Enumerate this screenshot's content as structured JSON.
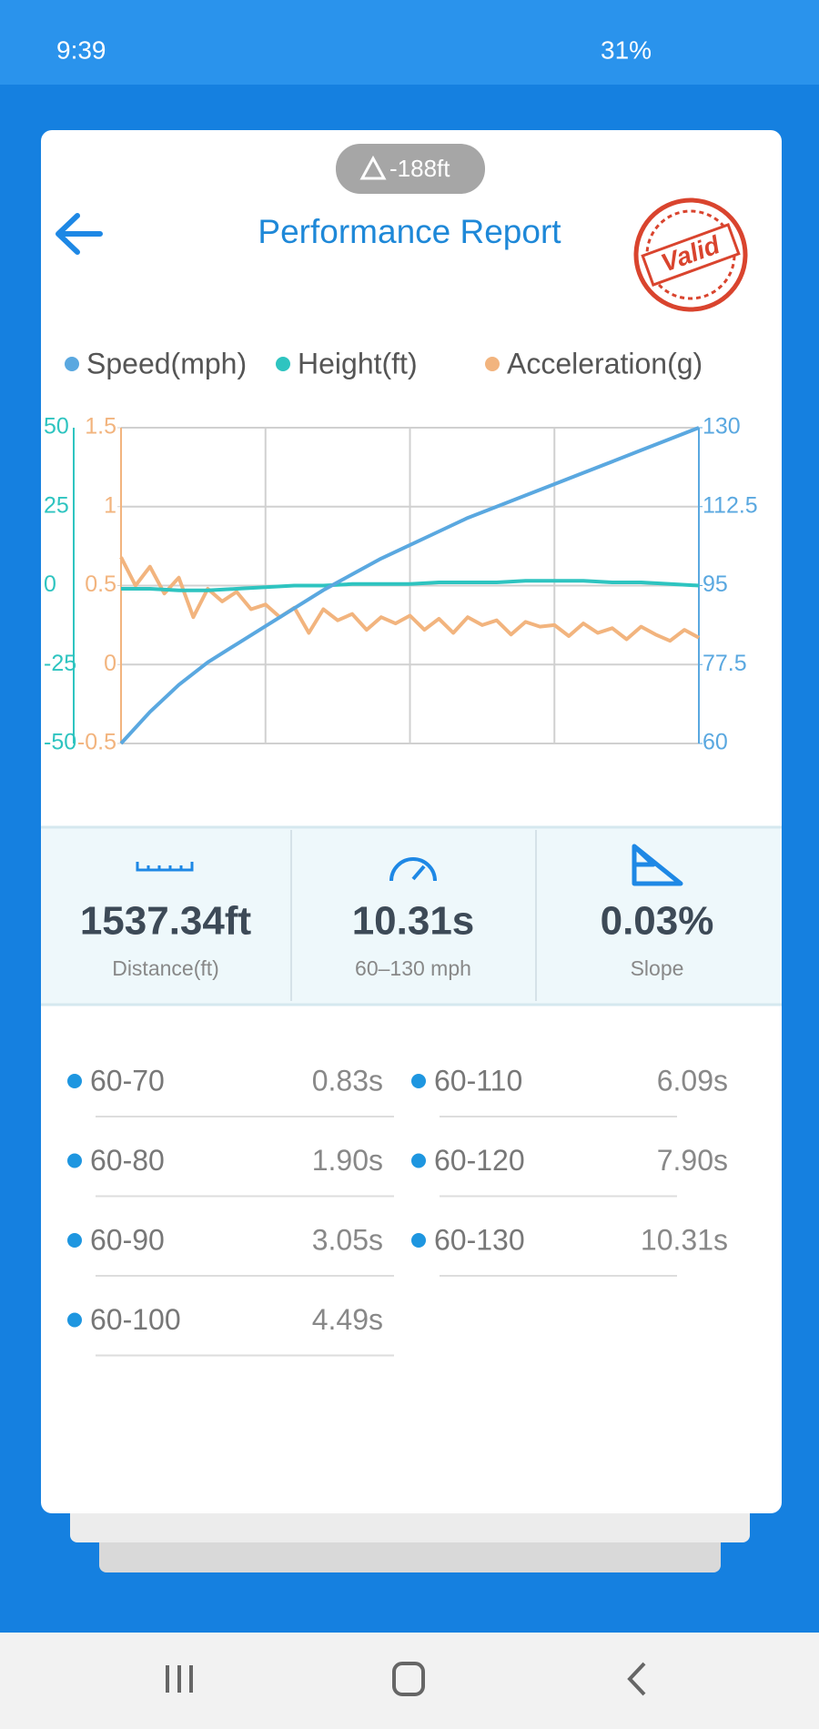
{
  "status_bar": {
    "time": "9:39",
    "battery": "31%"
  },
  "header": {
    "altitude": "-188ft",
    "title": "Performance Report",
    "stamp": "Valid"
  },
  "chart_data": {
    "type": "line",
    "grid": true,
    "ylim": [
      -50,
      50
    ],
    "yticks": [
      -50,
      -25,
      0,
      25,
      50
    ],
    "y2lim": [
      60,
      130
    ],
    "y2ticks": [
      60,
      77.5,
      95,
      112.5,
      130
    ],
    "y3lim": [
      -0.5,
      1.5
    ],
    "y3ticks": [
      -0.5,
      0,
      0.5,
      1,
      1.5
    ],
    "series": [
      {
        "name": "Speed(mph)",
        "color": "#5aa8e0",
        "axis": "y2",
        "values": [
          60,
          67,
          73,
          78,
          82,
          86,
          90,
          94,
          97.5,
          101,
          104,
          107,
          110,
          112.5,
          115,
          117.5,
          120,
          122.5,
          125,
          127.5,
          130
        ]
      },
      {
        "name": "Height(ft)",
        "color": "#2ec4c0",
        "axis": "y",
        "values": [
          -1,
          -1,
          -1.5,
          -1.5,
          -1,
          -0.5,
          0,
          0,
          0.5,
          0.5,
          0.5,
          1,
          1,
          1,
          1.5,
          1.5,
          1.5,
          1,
          1,
          0.5,
          0
        ]
      },
      {
        "name": "Acceleration(g)",
        "color": "#f2b47e",
        "axis": "y3",
        "values": [
          0.68,
          0.5,
          0.62,
          0.45,
          0.55,
          0.3,
          0.48,
          0.4,
          0.46,
          0.35,
          0.38,
          0.3,
          0.36,
          0.2,
          0.35,
          0.28,
          0.32,
          0.22,
          0.3,
          0.26,
          0.31,
          0.22,
          0.29,
          0.2,
          0.3,
          0.25,
          0.28,
          0.19,
          0.27,
          0.24,
          0.25,
          0.18,
          0.26,
          0.2,
          0.23,
          0.16,
          0.24,
          0.19,
          0.15,
          0.22,
          0.17
        ]
      }
    ]
  },
  "stats": [
    {
      "value": "1537.34ft",
      "label": "Distance(ft)"
    },
    {
      "value": "10.31s",
      "label": "60–130 mph"
    },
    {
      "value": "0.03%",
      "label": "Slope"
    }
  ],
  "splits": [
    {
      "label": "60-70",
      "time": "0.83s"
    },
    {
      "label": "60-80",
      "time": "1.90s"
    },
    {
      "label": "60-90",
      "time": "3.05s"
    },
    {
      "label": "60-100",
      "time": "4.49s"
    },
    {
      "label": "60-110",
      "time": "6.09s"
    },
    {
      "label": "60-120",
      "time": "7.90s"
    },
    {
      "label": "60-130",
      "time": "10.31s"
    }
  ]
}
